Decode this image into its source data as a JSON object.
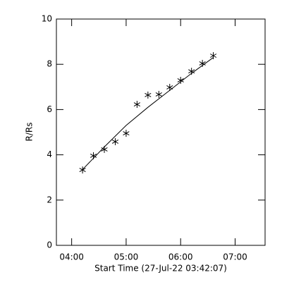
{
  "chart_data": {
    "type": "scatter",
    "xlabel": "Start Time (27-Jul-22 03:42:07)",
    "ylabel": "R/Rs",
    "xlim": [
      3.72,
      7.55
    ],
    "ylim": [
      0,
      10
    ],
    "xticks": [
      {
        "value": 4,
        "label": "04:00"
      },
      {
        "value": 5,
        "label": "05:00"
      },
      {
        "value": 6,
        "label": "06:00"
      },
      {
        "value": 7,
        "label": "07:00"
      }
    ],
    "yticks": [
      0,
      2,
      4,
      6,
      8,
      10
    ],
    "x": [
      4.2,
      4.4,
      4.6,
      4.8,
      5.0,
      5.2,
      5.4,
      5.6,
      5.8,
      6.0,
      6.2,
      6.4,
      6.6
    ],
    "series": [
      {
        "color": "#000000",
        "values": [
          3.33,
          3.96,
          4.24,
          4.58,
          4.95,
          6.23,
          6.64,
          6.67,
          6.98,
          7.29,
          7.69,
          8.04,
          8.38
        ]
      }
    ],
    "fit": {
      "color": "#000000",
      "x": [
        4.2,
        4.6,
        5.0,
        5.4,
        5.8,
        6.2,
        6.6
      ],
      "values": [
        3.35,
        4.35,
        5.3,
        6.1,
        6.85,
        7.6,
        8.3
      ]
    }
  }
}
